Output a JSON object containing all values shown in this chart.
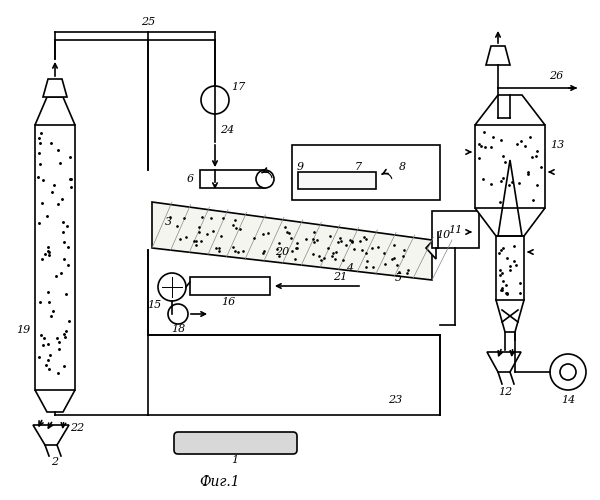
{
  "title": "Фиг.1",
  "bg_color": "#ffffff",
  "line_color": "#000000",
  "fig_width": 6.0,
  "fig_height": 5.0,
  "dpi": 100
}
